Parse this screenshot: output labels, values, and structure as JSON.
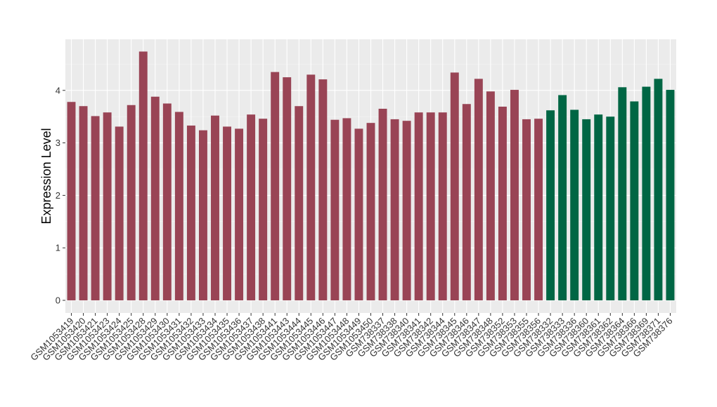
{
  "chart_data": {
    "type": "bar",
    "title": "",
    "xlabel": "",
    "ylabel": "Expression Level",
    "ylim": [
      0,
      4.85
    ],
    "yticks": [
      0,
      1,
      2,
      3,
      4
    ],
    "grid": true,
    "panel_background": "#ebebeb",
    "group_colors": {
      "group1": "#994455",
      "group2": "#006644"
    },
    "categories": [
      "GSM1053419",
      "GSM1053420",
      "GSM1053421",
      "GSM1053423",
      "GSM1053424",
      "GSM1053425",
      "GSM1053428",
      "GSM1053429",
      "GSM1053430",
      "GSM1053431",
      "GSM1053432",
      "GSM1053433",
      "GSM1053434",
      "GSM1053435",
      "GSM1053436",
      "GSM1053437",
      "GSM1053438",
      "GSM1053441",
      "GSM1053443",
      "GSM1053444",
      "GSM1053445",
      "GSM1053446",
      "GSM1053447",
      "GSM1053448",
      "GSM1053449",
      "GSM1053450",
      "GSM738337",
      "GSM738338",
      "GSM738340",
      "GSM738341",
      "GSM738342",
      "GSM738344",
      "GSM738345",
      "GSM738346",
      "GSM738347",
      "GSM738348",
      "GSM738352",
      "GSM738353",
      "GSM738355",
      "GSM738356",
      "GSM738332",
      "GSM738333",
      "GSM738336",
      "GSM738360",
      "GSM738361",
      "GSM738362",
      "GSM738364",
      "GSM738366",
      "GSM738369",
      "GSM738371",
      "GSM738376"
    ],
    "values": [
      3.78,
      3.7,
      3.51,
      3.58,
      3.31,
      3.72,
      4.74,
      3.88,
      3.75,
      3.59,
      3.33,
      3.24,
      3.52,
      3.31,
      3.27,
      3.54,
      3.46,
      4.35,
      4.25,
      3.7,
      4.3,
      4.21,
      3.44,
      3.47,
      3.27,
      3.38,
      3.65,
      3.45,
      3.42,
      3.58,
      3.58,
      3.58,
      4.34,
      3.74,
      4.22,
      3.98,
      3.69,
      4.01,
      3.45,
      3.46,
      3.62,
      3.91,
      3.63,
      3.45,
      3.54,
      3.5,
      4.06,
      3.79,
      4.07,
      4.22,
      4.01
    ],
    "groups": [
      "group1",
      "group1",
      "group1",
      "group1",
      "group1",
      "group1",
      "group1",
      "group1",
      "group1",
      "group1",
      "group1",
      "group1",
      "group1",
      "group1",
      "group1",
      "group1",
      "group1",
      "group1",
      "group1",
      "group1",
      "group1",
      "group1",
      "group1",
      "group1",
      "group1",
      "group1",
      "group1",
      "group1",
      "group1",
      "group1",
      "group1",
      "group1",
      "group1",
      "group1",
      "group1",
      "group1",
      "group1",
      "group1",
      "group1",
      "group1",
      "group2",
      "group2",
      "group2",
      "group2",
      "group2",
      "group2",
      "group2",
      "group2",
      "group2",
      "group2",
      "group2"
    ]
  }
}
